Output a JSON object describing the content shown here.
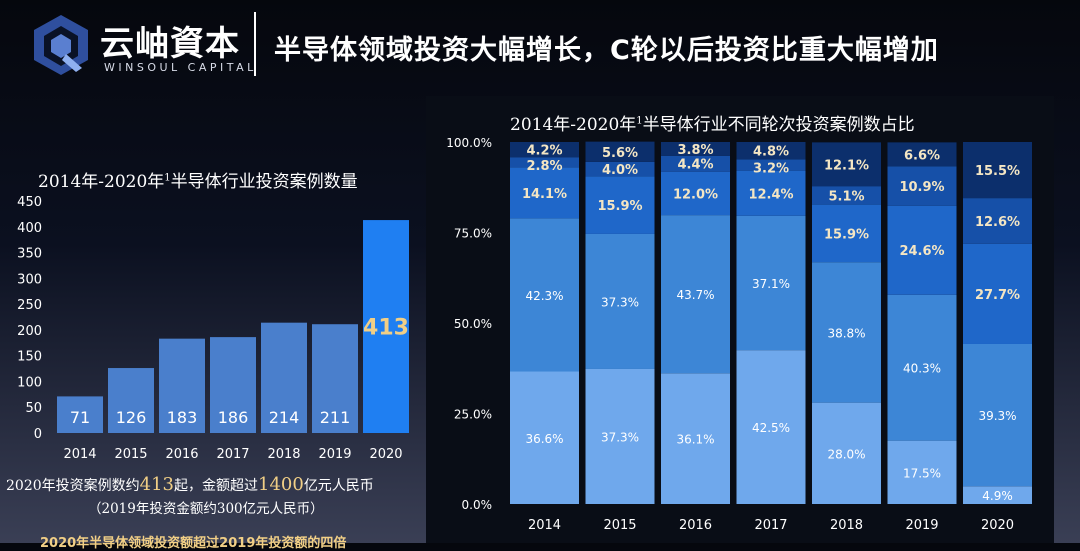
{
  "header": {
    "brand_cn": "云岫資本",
    "brand_en": "WINSOUL CAPITAL",
    "title": "半导体领域投资大幅增长，C轮以后投资比重大幅增加"
  },
  "left": {
    "title": "2014年-2020年",
    "title_sup": "1",
    "title_rest": "半导体行业投资案例数量",
    "note1_prefix": "2020年投资案例数约",
    "note1_num1": "413",
    "note1_mid": "起，金额超过",
    "note1_num2": "1400",
    "note1_suffix": "亿元人民币",
    "note2": "（2019年投资金额约300亿元人民币）",
    "note3": "2020年半导体领域投资额超过2019年投资额的四倍"
  },
  "right": {
    "title": "2014年-2020年",
    "title_sup": "1",
    "title_rest": "半导体行业不同轮次投资案例数占比"
  },
  "chart_data": [
    {
      "type": "bar",
      "categories": [
        "2014",
        "2015",
        "2016",
        "2017",
        "2018",
        "2019",
        "2020"
      ],
      "values": [
        71,
        126,
        183,
        186,
        214,
        211,
        413
      ],
      "ylim": [
        0,
        450
      ],
      "yticks": [
        0,
        50,
        100,
        150,
        200,
        250,
        300,
        350,
        400,
        450
      ],
      "highlight_index": 6,
      "colors": {
        "normal": "#4a7fcc",
        "highlight": "#1f7ff2",
        "highlight_label": "#f1cf86"
      }
    },
    {
      "type": "bar",
      "stacked": true,
      "categories": [
        "2014",
        "2015",
        "2016",
        "2017",
        "2018",
        "2019",
        "2020"
      ],
      "yticks": [
        "0.0%",
        "25.0%",
        "50.0%",
        "75.0%",
        "100.0%"
      ],
      "ylim": [
        0,
        100
      ],
      "series": [
        {
          "values": [
            36.6,
            37.3,
            36.1,
            42.5,
            28.0,
            17.5,
            4.9
          ],
          "labels": [
            "36.6%",
            "37.3%",
            "36.1%",
            "42.5%",
            "28.0%",
            "17.5%",
            "4.9%"
          ],
          "color": "#6fa8ec"
        },
        {
          "values": [
            42.3,
            37.3,
            43.7,
            37.1,
            38.8,
            40.3,
            39.3
          ],
          "labels": [
            "42.3%",
            "37.3%",
            "43.7%",
            "37.1%",
            "38.8%",
            "40.3%",
            "39.3%"
          ],
          "color": "#3d86d6"
        },
        {
          "values": [
            14.1,
            15.9,
            12.0,
            12.4,
            15.9,
            24.6,
            27.7
          ],
          "labels": [
            "14.1%",
            "15.9%",
            "12.0%",
            "12.4%",
            "15.9%",
            "24.6%",
            "27.7%"
          ],
          "color": "#1f67c9"
        },
        {
          "values": [
            2.8,
            4.0,
            4.4,
            3.2,
            5.1,
            10.9,
            12.6
          ],
          "labels": [
            "2.8%",
            "4.0%",
            "4.4%",
            "3.2%",
            "5.1%",
            "10.9%",
            "12.6%"
          ],
          "color": "#1650a8"
        },
        {
          "values": [
            4.2,
            5.6,
            3.8,
            4.8,
            12.1,
            6.6,
            15.5
          ],
          "labels": [
            "4.2%",
            "5.6%",
            "3.8%",
            "4.8%",
            "12.1%",
            "6.6%",
            "15.5%"
          ],
          "color": "#0c2f6c"
        }
      ],
      "label_colors": [
        "#ffffff",
        "#ffffff",
        "#f4e6c4",
        "#f4e6c4",
        "#f4e6c4"
      ]
    }
  ]
}
